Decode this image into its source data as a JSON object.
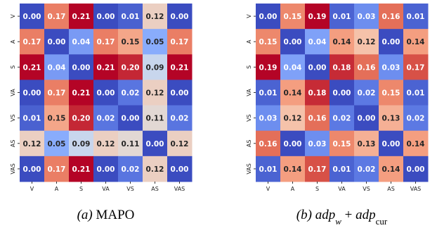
{
  "chart_data": [
    {
      "type": "heatmap",
      "colormap": "coolwarm",
      "categories": [
        "V",
        "A",
        "S",
        "VA",
        "VS",
        "AS",
        "VAS"
      ],
      "row_categories": [
        "V",
        "A",
        "S",
        "VA",
        "VS",
        "AS",
        "VAS"
      ],
      "values": [
        [
          0,
          0.17,
          0.21,
          0,
          0.01,
          0.12,
          0
        ],
        [
          0.17,
          0,
          0.04,
          0.17,
          0.15,
          0.05,
          0.17
        ],
        [
          0.21,
          0.04,
          0,
          0.21,
          0.2,
          0.09,
          0.21
        ],
        [
          0,
          0.17,
          0.21,
          0,
          0.02,
          0.12,
          0
        ],
        [
          0.01,
          0.15,
          0.2,
          0.02,
          0,
          0.11,
          0.02
        ],
        [
          0.12,
          0.05,
          0.09,
          0.12,
          0.11,
          0,
          0.12
        ],
        [
          0,
          0.17,
          0.21,
          0,
          0.02,
          0.12,
          0
        ]
      ],
      "value_labels": [
        [
          "0.00",
          "0.17",
          "0.21",
          "0.00",
          "0.01",
          "0.12",
          "0.00"
        ],
        [
          "0.17",
          "0.00",
          "0.04",
          "0.17",
          "0.15",
          "0.05",
          "0.17"
        ],
        [
          "0.21",
          "0.04",
          "0.00",
          "0.21",
          "0.20",
          "0.09",
          "0.21"
        ],
        [
          "0.00",
          "0.17",
          "0.21",
          "0.00",
          "0.02",
          "0.12",
          "0.00"
        ],
        [
          "0.01",
          "0.15",
          "0.20",
          "0.02",
          "0.00",
          "0.11",
          "0.02"
        ],
        [
          "0.12",
          "0.05",
          "0.09",
          "0.12",
          "0.11",
          "0.00",
          "0.12"
        ],
        [
          "0.00",
          "0.17",
          "0.21",
          "0.00",
          "0.02",
          "0.12",
          "0.00"
        ]
      ],
      "caption": [
        {
          "text": "(a) "
        },
        {
          "text": "MAPO",
          "upright": true
        }
      ]
    },
    {
      "type": "heatmap",
      "colormap": "coolwarm",
      "categories": [
        "V",
        "A",
        "S",
        "VA",
        "VS",
        "AS",
        "VAS"
      ],
      "row_categories": [
        "V",
        "A",
        "S",
        "VA",
        "VS",
        "AS",
        "VAS"
      ],
      "values": [
        [
          0,
          0.15,
          0.19,
          0.01,
          0.03,
          0.16,
          0.01
        ],
        [
          0.15,
          0,
          0.04,
          0.14,
          0.12,
          0,
          0.14
        ],
        [
          0.19,
          0.04,
          0,
          0.18,
          0.16,
          0.03,
          0.17
        ],
        [
          0.01,
          0.14,
          0.18,
          0,
          0.02,
          0.15,
          0.01
        ],
        [
          0.03,
          0.12,
          0.16,
          0.02,
          0,
          0.13,
          0.02
        ],
        [
          0.16,
          0,
          0.03,
          0.15,
          0.13,
          0,
          0.14
        ],
        [
          0.01,
          0.14,
          0.17,
          0.01,
          0.02,
          0.14,
          0
        ]
      ],
      "value_labels": [
        [
          "0.00",
          "0.15",
          "0.19",
          "0.01",
          "0.03",
          "0.16",
          "0.01"
        ],
        [
          "0.15",
          "0.00",
          "0.04",
          "0.14",
          "0.12",
          "0.00",
          "0.14"
        ],
        [
          "0.19",
          "0.04",
          "0.00",
          "0.18",
          "0.16",
          "0.03",
          "0.17"
        ],
        [
          "0.01",
          "0.14",
          "0.18",
          "0.00",
          "0.02",
          "0.15",
          "0.01"
        ],
        [
          "0.03",
          "0.12",
          "0.16",
          "0.02",
          "0.00",
          "0.13",
          "0.02"
        ],
        [
          "0.16",
          "0.00",
          "0.03",
          "0.15",
          "0.13",
          "0.00",
          "0.14"
        ],
        [
          "0.01",
          "0.14",
          "0.17",
          "0.01",
          "0.02",
          "0.14",
          "0.00"
        ]
      ],
      "caption": [
        {
          "text": "(b) "
        },
        {
          "text": "adp"
        },
        {
          "text": "w",
          "sub": true
        },
        {
          "text": " + ",
          "upright": true
        },
        {
          "text": "adp"
        },
        {
          "text": "cur",
          "sub": true,
          "upright": true
        }
      ]
    }
  ]
}
